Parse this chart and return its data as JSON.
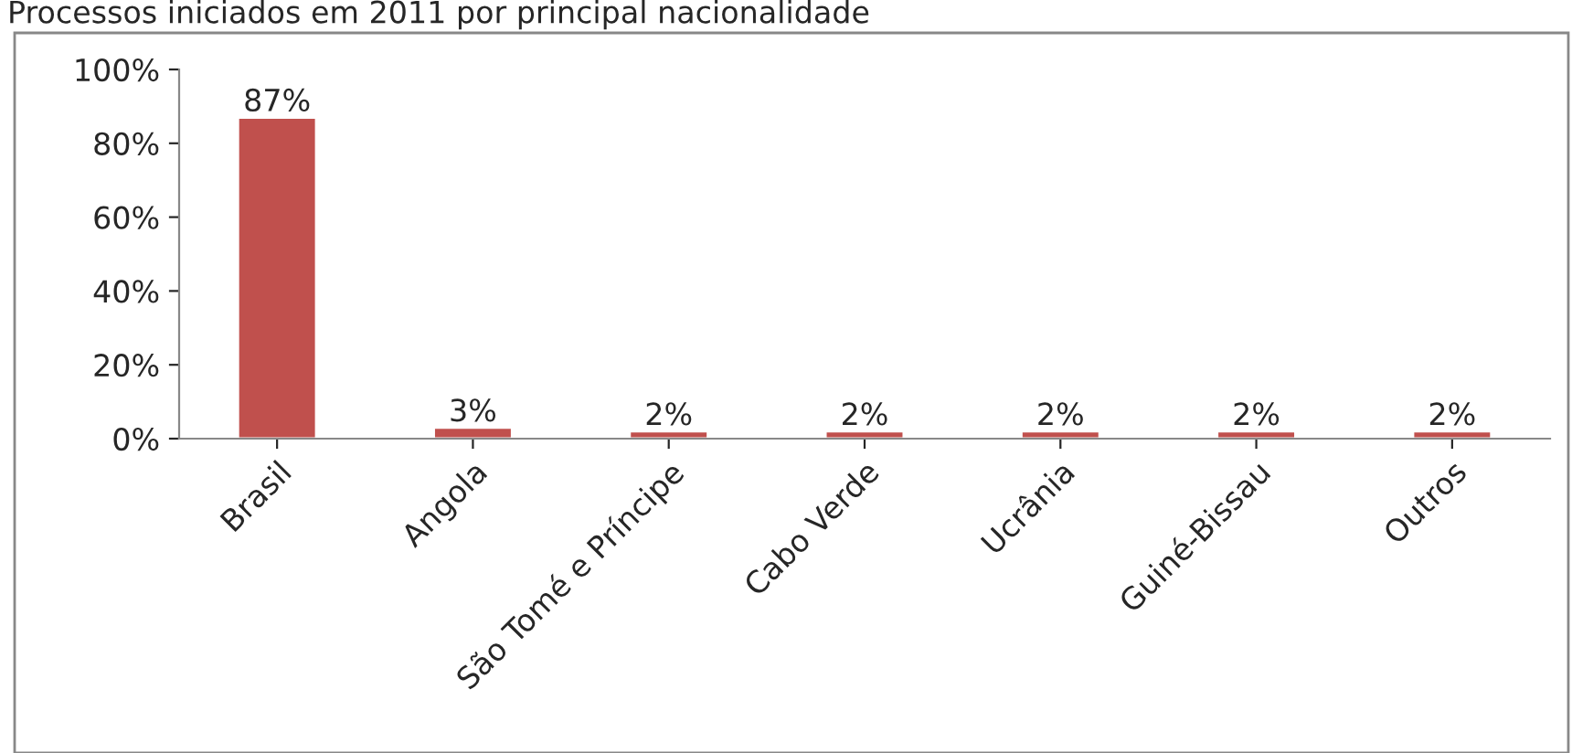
{
  "chart_data": {
    "type": "bar",
    "title": "Processos iniciados em 2011 por principal nacionalidade",
    "categories": [
      "Brasil",
      "Angola",
      "São Tomé e Príncipe",
      "Cabo Verde",
      "Ucrânia",
      "Guiné-Bissau",
      "Outros"
    ],
    "values": [
      87,
      3,
      2,
      2,
      2,
      2,
      2
    ],
    "value_labels": [
      "87%",
      "3%",
      "2%",
      "2%",
      "2%",
      "2%",
      "2%"
    ],
    "color": "#c0504d",
    "ylim": [
      0,
      100
    ],
    "yticks": [
      {
        "value": 0,
        "label": "0%"
      },
      {
        "value": 20,
        "label": "20%"
      },
      {
        "value": 40,
        "label": "40%"
      },
      {
        "value": 60,
        "label": "60%"
      },
      {
        "value": 80,
        "label": "80%"
      },
      {
        "value": 100,
        "label": "100%"
      }
    ],
    "grid": false,
    "legend": false
  }
}
